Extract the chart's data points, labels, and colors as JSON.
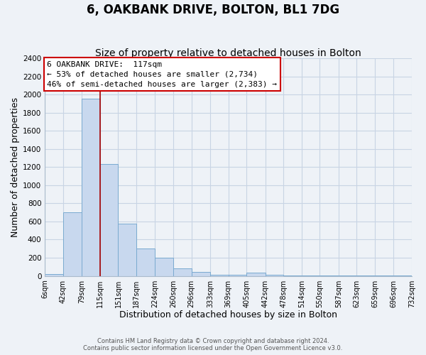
{
  "title": "6, OAKBANK DRIVE, BOLTON, BL1 7DG",
  "subtitle": "Size of property relative to detached houses in Bolton",
  "xlabel": "Distribution of detached houses by size in Bolton",
  "ylabel": "Number of detached properties",
  "bar_edges": [
    6,
    42,
    79,
    115,
    151,
    187,
    224,
    260,
    296,
    333,
    369,
    405,
    442,
    478,
    514,
    550,
    587,
    623,
    659,
    696,
    732
  ],
  "bar_heights": [
    20,
    700,
    1950,
    1230,
    575,
    300,
    200,
    80,
    45,
    15,
    10,
    35,
    10,
    5,
    5,
    2,
    2,
    2,
    2,
    2
  ],
  "bar_color": "#c8d8ee",
  "bar_edge_color": "#7aaad0",
  "property_line_x": 115,
  "property_line_color": "#aa0000",
  "ylim": [
    0,
    2400
  ],
  "yticks": [
    0,
    200,
    400,
    600,
    800,
    1000,
    1200,
    1400,
    1600,
    1800,
    2000,
    2200,
    2400
  ],
  "tick_labels": [
    "6sqm",
    "42sqm",
    "79sqm",
    "115sqm",
    "151sqm",
    "187sqm",
    "224sqm",
    "260sqm",
    "296sqm",
    "333sqm",
    "369sqm",
    "405sqm",
    "442sqm",
    "478sqm",
    "514sqm",
    "550sqm",
    "587sqm",
    "623sqm",
    "659sqm",
    "696sqm",
    "732sqm"
  ],
  "annotation_box_text": "6 OAKBANK DRIVE:  117sqm\n← 53% of detached houses are smaller (2,734)\n46% of semi-detached houses are larger (2,383) →",
  "footer_text": "Contains HM Land Registry data © Crown copyright and database right 2024.\nContains public sector information licensed under the Open Government Licence v3.0.",
  "background_color": "#eef2f7",
  "plot_bg_color": "#eef2f7",
  "grid_color": "#c8d4e4",
  "title_fontsize": 12,
  "subtitle_fontsize": 10,
  "axis_label_fontsize": 9,
  "tick_fontsize": 7
}
